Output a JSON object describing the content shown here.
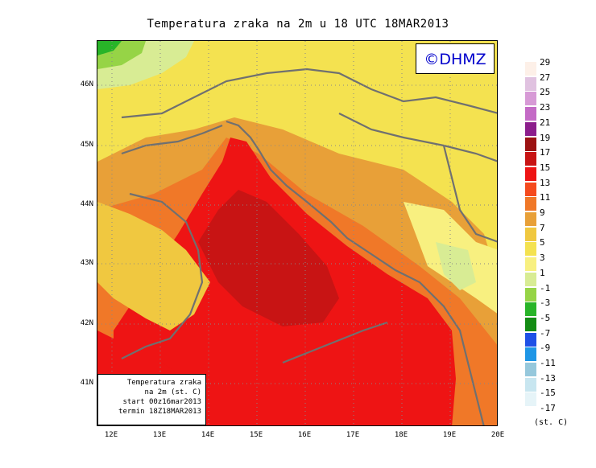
{
  "title": "Temperatura zraka na 2m u 18 UTC 18MAR2013",
  "copyright": "©DHMZ",
  "info_box": {
    "lines": [
      "Temperatura zraka",
      "na 2m (st. C)",
      "start 00z16mar2013",
      "termin 18Z18MAR2013"
    ]
  },
  "axes": {
    "lat_labels": [
      "46N",
      "45N",
      "44N",
      "43N",
      "42N",
      "41N"
    ],
    "lon_labels": [
      "12E",
      "13E",
      "14E",
      "15E",
      "16E",
      "17E",
      "18E",
      "19E",
      "20E"
    ]
  },
  "legend": {
    "unit": "(st. C)",
    "labels": [
      "29",
      "27",
      "25",
      "23",
      "21",
      "19",
      "17",
      "15",
      "13",
      "11",
      "9",
      "7",
      "5",
      "3",
      "1",
      "-1",
      "-3",
      "-5",
      "-7",
      "-9",
      "-11",
      "-13",
      "-15",
      "-17"
    ],
    "colors": [
      "#fdf0e8",
      "#e0c2e0",
      "#d79ad6",
      "#c46ac6",
      "#8c1e8c",
      "#9c1212",
      "#c81414",
      "#ee1414",
      "#f54a1e",
      "#f07828",
      "#e8a038",
      "#f0c840",
      "#f4e250",
      "#f8f080",
      "#d8ec94",
      "#96d446",
      "#28b428",
      "#148c14",
      "#1e50e6",
      "#1e96e6",
      "#96c8dc",
      "#c8e6f0",
      "#e6f4f8"
    ]
  },
  "colors": {
    "land_background": "#f4e250",
    "warm_sea": "#ee1414",
    "hot_core": "#c81414",
    "border_line": "#707070",
    "copyright_text": "#0000cc"
  }
}
